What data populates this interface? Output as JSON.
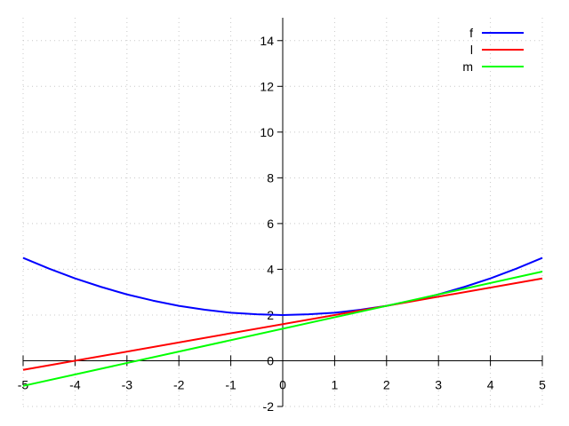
{
  "chart_data": {
    "type": "line",
    "xlim": [
      -5,
      5
    ],
    "ylim": [
      -2,
      15
    ],
    "x_ticks": [
      -5,
      -4,
      -3,
      -2,
      -1,
      0,
      1,
      2,
      3,
      4,
      5
    ],
    "y_ticks": [
      -2,
      0,
      2,
      4,
      6,
      8,
      10,
      12,
      14
    ],
    "grid": true,
    "legend_position": "top-right",
    "series": [
      {
        "name": "f",
        "color": "#0000ff",
        "points": [
          [
            -5,
            4.5
          ],
          [
            -4.5,
            4.03
          ],
          [
            -4,
            3.6
          ],
          [
            -3.5,
            3.23
          ],
          [
            -3,
            2.9
          ],
          [
            -2.5,
            2.63
          ],
          [
            -2,
            2.4
          ],
          [
            -1.5,
            2.23
          ],
          [
            -1,
            2.1
          ],
          [
            -0.5,
            2.03
          ],
          [
            0,
            2.0
          ],
          [
            0.5,
            2.03
          ],
          [
            1,
            2.1
          ],
          [
            1.5,
            2.23
          ],
          [
            2,
            2.4
          ],
          [
            2.5,
            2.63
          ],
          [
            3,
            2.9
          ],
          [
            3.5,
            3.23
          ],
          [
            4,
            3.6
          ],
          [
            4.5,
            4.03
          ],
          [
            5,
            4.5
          ]
        ]
      },
      {
        "name": "l",
        "color": "#ff0000",
        "points": [
          [
            -5,
            -0.4
          ],
          [
            5,
            3.6
          ]
        ]
      },
      {
        "name": "m",
        "color": "#00ff00",
        "points": [
          [
            -5,
            -1.1
          ],
          [
            5,
            3.9
          ]
        ]
      }
    ]
  }
}
